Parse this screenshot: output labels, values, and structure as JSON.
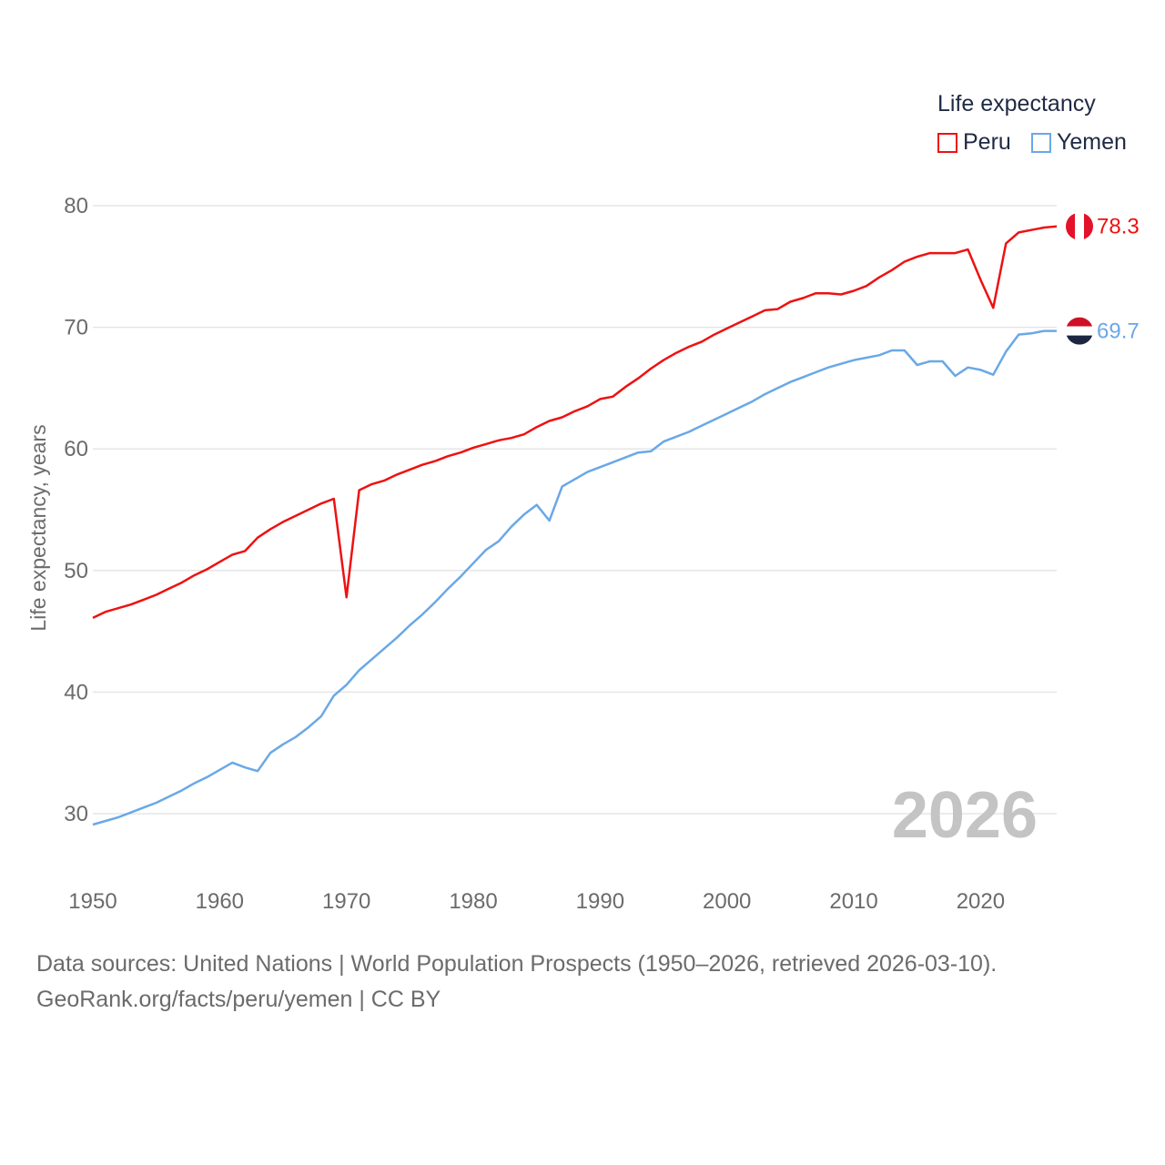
{
  "legend": {
    "title": "Life expectancy",
    "items": [
      {
        "label": "Peru",
        "color": "#ee1111"
      },
      {
        "label": "Yemen",
        "color": "#6aa8e6"
      }
    ]
  },
  "footer": {
    "line1": "Data sources: United Nations | World Population Prospects (1950–2026, retrieved 2026-03-10).",
    "line2": "GeoRank.org/facts/peru/yemen | CC BY"
  },
  "chart_data": {
    "type": "line",
    "title": "Life expectancy",
    "xlabel": "",
    "ylabel": "Life expectancy, years",
    "xlim": [
      1950,
      2026
    ],
    "ylim": [
      25,
      82
    ],
    "x_ticks": [
      1950,
      1960,
      1970,
      1980,
      1990,
      2000,
      2010,
      2020
    ],
    "y_ticks": [
      30,
      40,
      50,
      60,
      70,
      80
    ],
    "grid": true,
    "year_label": "2026",
    "x": [
      1950,
      1951,
      1952,
      1953,
      1954,
      1955,
      1956,
      1957,
      1958,
      1959,
      1960,
      1961,
      1962,
      1963,
      1964,
      1965,
      1966,
      1967,
      1968,
      1969,
      1970,
      1971,
      1972,
      1973,
      1974,
      1975,
      1976,
      1977,
      1978,
      1979,
      1980,
      1981,
      1982,
      1983,
      1984,
      1985,
      1986,
      1987,
      1988,
      1989,
      1990,
      1991,
      1992,
      1993,
      1994,
      1995,
      1996,
      1997,
      1998,
      1999,
      2000,
      2001,
      2002,
      2003,
      2004,
      2005,
      2006,
      2007,
      2008,
      2009,
      2010,
      2011,
      2012,
      2013,
      2014,
      2015,
      2016,
      2017,
      2018,
      2019,
      2020,
      2021,
      2022,
      2023,
      2024,
      2025,
      2026
    ],
    "series": [
      {
        "name": "Peru",
        "color": "#ee1111",
        "end_label": "78.3",
        "values": [
          46.1,
          46.6,
          46.9,
          47.2,
          47.6,
          48.0,
          48.5,
          49.0,
          49.6,
          50.1,
          50.7,
          51.3,
          51.6,
          52.7,
          53.4,
          54.0,
          54.5,
          55.0,
          55.5,
          55.9,
          47.8,
          56.6,
          57.1,
          57.4,
          57.9,
          58.3,
          58.7,
          59.0,
          59.4,
          59.7,
          60.1,
          60.4,
          60.7,
          60.9,
          61.2,
          61.8,
          62.3,
          62.6,
          63.1,
          63.5,
          64.1,
          64.3,
          65.1,
          65.8,
          66.6,
          67.3,
          67.9,
          68.4,
          68.8,
          69.4,
          69.9,
          70.4,
          70.9,
          71.4,
          71.5,
          72.1,
          72.4,
          72.8,
          72.8,
          72.7,
          73.0,
          73.4,
          74.1,
          74.7,
          75.4,
          75.8,
          76.1,
          76.1,
          76.1,
          76.4,
          73.9,
          71.6,
          76.9,
          77.8,
          78.0,
          78.2,
          78.3
        ]
      },
      {
        "name": "Yemen",
        "color": "#6aa8e6",
        "end_label": "69.7",
        "values": [
          29.1,
          29.4,
          29.7,
          30.1,
          30.5,
          30.9,
          31.4,
          31.9,
          32.5,
          33.0,
          33.6,
          34.2,
          33.8,
          33.5,
          35.0,
          35.7,
          36.3,
          37.1,
          38.0,
          39.7,
          40.6,
          41.8,
          42.7,
          43.6,
          44.5,
          45.5,
          46.4,
          47.4,
          48.5,
          49.5,
          50.6,
          51.7,
          52.4,
          53.6,
          54.6,
          55.4,
          54.1,
          56.9,
          57.5,
          58.1,
          58.5,
          58.9,
          59.3,
          59.7,
          59.8,
          60.6,
          61.0,
          61.4,
          61.9,
          62.4,
          62.9,
          63.4,
          63.9,
          64.5,
          65.0,
          65.5,
          65.9,
          66.3,
          66.7,
          67.0,
          67.3,
          67.5,
          67.7,
          68.1,
          68.1,
          66.9,
          67.2,
          67.2,
          66.0,
          66.7,
          66.5,
          66.1,
          68.0,
          69.4,
          69.5,
          69.7,
          69.7
        ]
      }
    ]
  }
}
